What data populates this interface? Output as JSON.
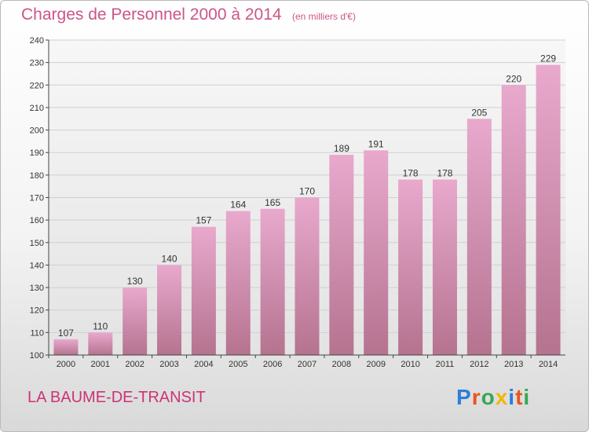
{
  "title": "Charges de Personnel 2000 à 2014",
  "subtitle": "(en milliers d'€)",
  "commune": "LA BAUME-DE-TRANSIT",
  "logo": {
    "text": "Proxiti",
    "letter_colors": [
      "#2a7fd6",
      "#e8541e",
      "#34a853",
      "#f2b705",
      "#2a7fd6",
      "#e8541e",
      "#34a853"
    ]
  },
  "colors": {
    "accent": "#cc5588",
    "bar_top": "#e8a9cd",
    "bar_bottom": "#b5738f",
    "axis": "#444444",
    "grid": "#d0d0d0"
  },
  "chart_data": {
    "type": "bar",
    "title": "Charges de Personnel 2000 à 2014",
    "subtitle": "(en milliers d'€)",
    "categories": [
      "2000",
      "2001",
      "2002",
      "2003",
      "2004",
      "2005",
      "2006",
      "2007",
      "2008",
      "2009",
      "2010",
      "2011",
      "2012",
      "2013",
      "2014"
    ],
    "values": [
      107,
      110,
      130,
      140,
      157,
      164,
      165,
      170,
      189,
      191,
      178,
      178,
      205,
      220,
      229
    ],
    "ylim": [
      100,
      240
    ],
    "yticks": [
      100,
      110,
      120,
      130,
      140,
      150,
      160,
      170,
      180,
      190,
      200,
      210,
      220,
      230,
      240
    ],
    "xlabel": "",
    "ylabel": "",
    "grid": true,
    "data_labels": true
  }
}
